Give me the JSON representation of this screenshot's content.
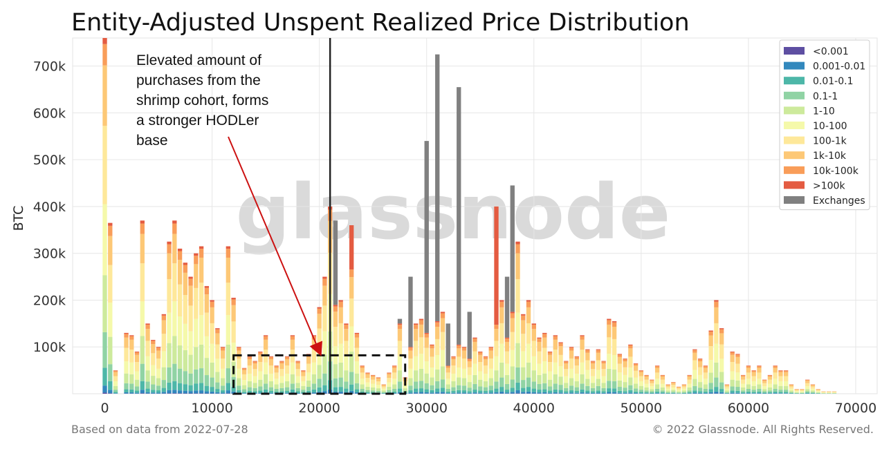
{
  "title": "Entity-Adjusted Unspent Realized Price Distribution",
  "ylabel": "BTC",
  "footer_left": "Based on data from 2022-07-28",
  "footer_right": "© 2022 Glassnode. All Rights Reserved.",
  "watermark": "glassnode",
  "annotation_lines": [
    "Elevated amount of",
    "purchases from the",
    "shrimp cohort, forms",
    "a stronger HODLer",
    "base"
  ],
  "colors": {
    "<0.001": "#5e4fa2",
    "0.001-0.01": "#3288bd",
    "0.01-0.1": "#4db7a8",
    "0.1-1": "#90d3a4",
    "1-10": "#cdea9c",
    "10-100": "#f5f9aa",
    "100-1k": "#fee89a",
    "1k-10k": "#fdc876",
    "10k-100k": "#f99d59",
    ">100k": "#e45b41",
    "Exchanges": "#808080",
    "annotation_arrow": "#cc1111",
    "vertical_line": "#222222"
  },
  "chart_data": {
    "type": "bar",
    "stacked": true,
    "xlabel": "",
    "ylabel": "BTC",
    "xlim": [
      -3000,
      72000
    ],
    "ylim": [
      0,
      760000
    ],
    "xticks": [
      0,
      10000,
      20000,
      30000,
      40000,
      50000,
      60000,
      70000
    ],
    "yticks": [
      100000,
      200000,
      300000,
      400000,
      500000,
      600000,
      700000
    ],
    "ytick_labels": [
      "100k",
      "200k",
      "300k",
      "400k",
      "500k",
      "600k",
      "700k"
    ],
    "grid": true,
    "legend_position": "top-right",
    "current_price_line_x": 21000,
    "highlight_box": {
      "x": [
        12000,
        28000
      ],
      "y": [
        0,
        82000
      ]
    },
    "bin_width": 500,
    "series_order": [
      "<0.001",
      "0.001-0.01",
      "0.01-0.1",
      "0.1-1",
      "1-10",
      "10-100",
      "100-1k",
      "1k-10k",
      "10k-100k",
      ">100k",
      "Exchanges"
    ],
    "x": [
      0,
      500,
      1000,
      1500,
      2000,
      2500,
      3000,
      3500,
      4000,
      4500,
      5000,
      5500,
      6000,
      6500,
      7000,
      7500,
      8000,
      8500,
      9000,
      9500,
      10000,
      10500,
      11000,
      11500,
      12000,
      12500,
      13000,
      13500,
      14000,
      14500,
      15000,
      15500,
      16000,
      16500,
      17000,
      17500,
      18000,
      18500,
      19000,
      19500,
      20000,
      20500,
      21000,
      21500,
      22000,
      22500,
      23000,
      23500,
      24000,
      24500,
      25000,
      25500,
      26000,
      26500,
      27000,
      27500,
      28000,
      28500,
      29000,
      29500,
      30000,
      30500,
      31000,
      31500,
      32000,
      32500,
      33000,
      33500,
      34000,
      34500,
      35000,
      35500,
      36000,
      36500,
      37000,
      37500,
      38000,
      38500,
      39000,
      39500,
      40000,
      40500,
      41000,
      41500,
      42000,
      42500,
      43000,
      43500,
      44000,
      44500,
      45000,
      45500,
      46000,
      46500,
      47000,
      47500,
      48000,
      48500,
      49000,
      49500,
      50000,
      50500,
      51000,
      51500,
      52000,
      52500,
      53000,
      53500,
      54000,
      54500,
      55000,
      55500,
      56000,
      56500,
      57000,
      57500,
      58000,
      58500,
      59000,
      59500,
      60000,
      60500,
      61000,
      61500,
      62000,
      62500,
      63000,
      63500,
      64000,
      64500,
      65000,
      65500,
      66000,
      66500,
      67000,
      67500,
      68000
    ],
    "totals": [
      760000,
      365000,
      50000,
      0,
      130000,
      125000,
      90000,
      370000,
      150000,
      115000,
      100000,
      170000,
      325000,
      370000,
      310000,
      280000,
      250000,
      300000,
      315000,
      230000,
      200000,
      140000,
      100000,
      315000,
      205000,
      100000,
      55000,
      80000,
      70000,
      90000,
      125000,
      80000,
      60000,
      70000,
      80000,
      125000,
      70000,
      50000,
      85000,
      125000,
      185000,
      250000,
      400000,
      370000,
      200000,
      150000,
      360000,
      130000,
      60000,
      45000,
      40000,
      35000,
      20000,
      45000,
      60000,
      160000,
      35000,
      250000,
      150000,
      160000,
      540000,
      105000,
      725000,
      175000,
      150000,
      80000,
      655000,
      100000,
      175000,
      120000,
      90000,
      80000,
      100000,
      400000,
      200000,
      250000,
      445000,
      325000,
      170000,
      200000,
      150000,
      120000,
      130000,
      90000,
      125000,
      110000,
      70000,
      100000,
      80000,
      125000,
      95000,
      70000,
      95000,
      70000,
      160000,
      155000,
      85000,
      75000,
      105000,
      65000,
      50000,
      40000,
      30000,
      60000,
      40000,
      20000,
      25000,
      15000,
      20000,
      40000,
      95000,
      75000,
      60000,
      135000,
      200000,
      140000,
      20000,
      90000,
      85000,
      40000,
      60000,
      50000,
      60000,
      30000,
      40000,
      60000,
      50000,
      50000,
      20000,
      10000,
      10000,
      30000,
      20000,
      10000,
      5000,
      5000,
      5000
    ],
    "exchanges": [
      0,
      0,
      0,
      0,
      0,
      0,
      0,
      0,
      0,
      0,
      0,
      0,
      0,
      0,
      0,
      0,
      0,
      0,
      0,
      0,
      0,
      0,
      0,
      0,
      0,
      0,
      0,
      0,
      0,
      0,
      0,
      0,
      0,
      0,
      0,
      0,
      0,
      0,
      0,
      0,
      0,
      0,
      0,
      180000,
      0,
      0,
      0,
      0,
      0,
      0,
      0,
      0,
      0,
      0,
      0,
      10000,
      0,
      150000,
      0,
      0,
      410000,
      0,
      570000,
      0,
      90000,
      0,
      550000,
      0,
      100000,
      0,
      0,
      0,
      0,
      0,
      0,
      130000,
      270000,
      0,
      0,
      0,
      0,
      0,
      0,
      0,
      0,
      0,
      0,
      0,
      0,
      0,
      0,
      0,
      0,
      0,
      0,
      0,
      0,
      0,
      0,
      0,
      0,
      0,
      0,
      0,
      0,
      0,
      0,
      0,
      0,
      0,
      0,
      0,
      0,
      0,
      0,
      0,
      0,
      0,
      0,
      0,
      0,
      0,
      0,
      0,
      0,
      0,
      0,
      0,
      0,
      0,
      0,
      0,
      0,
      0,
      0,
      0
    ],
    "whales": [
      0,
      0,
      0,
      0,
      0,
      0,
      0,
      0,
      0,
      0,
      0,
      0,
      0,
      0,
      0,
      0,
      0,
      0,
      0,
      0,
      0,
      0,
      0,
      0,
      0,
      0,
      0,
      0,
      0,
      0,
      0,
      0,
      0,
      0,
      0,
      0,
      0,
      0,
      0,
      0,
      0,
      0,
      0,
      0,
      0,
      0,
      90000,
      0,
      0,
      0,
      0,
      0,
      0,
      0,
      0,
      0,
      0,
      0,
      0,
      0,
      0,
      0,
      0,
      0,
      0,
      0,
      0,
      0,
      0,
      0,
      0,
      0,
      0,
      250000,
      0,
      0,
      0,
      0,
      0,
      0,
      0,
      0,
      0,
      0,
      0,
      0,
      0,
      0,
      0,
      0,
      0,
      0,
      0,
      0,
      0,
      0,
      0,
      0,
      0,
      0,
      0,
      0,
      0,
      0,
      0,
      0,
      0,
      0,
      0,
      0,
      0,
      0,
      0,
      0,
      0,
      0,
      0,
      0,
      0,
      0,
      0,
      0,
      0,
      0,
      0,
      0,
      0,
      0,
      0,
      0,
      0,
      0,
      0,
      0,
      0,
      0,
      0
    ]
  }
}
